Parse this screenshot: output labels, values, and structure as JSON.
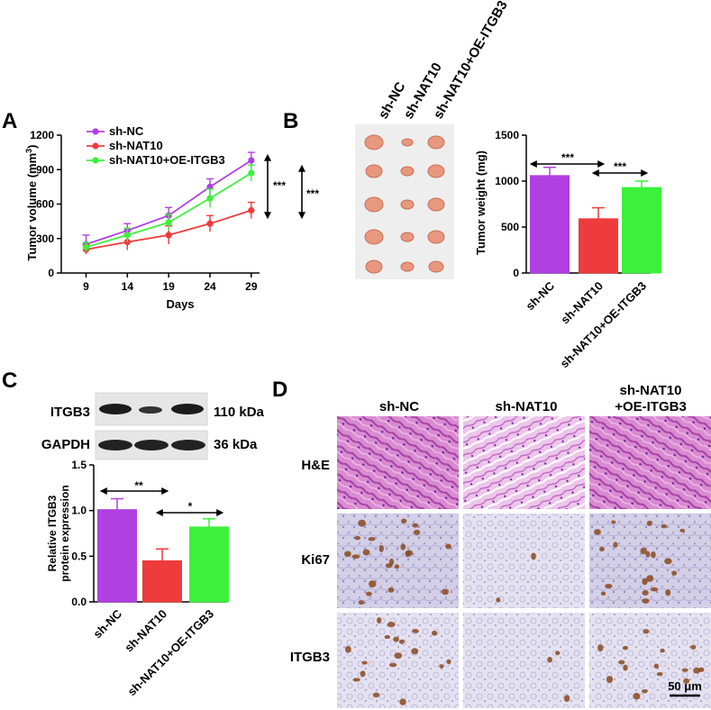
{
  "panel_labels": [
    "A",
    "B",
    "C",
    "D"
  ],
  "colors": {
    "sh-NC": "#B040E0",
    "sh-NAT10": "#EE3B3B",
    "sh-NAT10+OE-ITGB3": "#3CF03C"
  },
  "panelA": {
    "ylabel": "Tumor volume (mm",
    "ylabel_sup": "3",
    "ylabel_end": ")",
    "xlabel": "Days",
    "significance": [
      "***",
      "***"
    ]
  },
  "panelB": {
    "photo_labels": [
      "sh-NC",
      "sh-NAT10",
      "sh-NAT10+OE-ITGB3"
    ],
    "ylabel": "Tumor weight (mg)",
    "significance": [
      "***",
      "***"
    ]
  },
  "panelC": {
    "blot_labels": [
      "ITGB3",
      "GAPDH"
    ],
    "blot_sizes": [
      "110 kDa",
      "36 kDa"
    ],
    "ylabel_line1": "Relative ITGB3",
    "ylabel_line2": "protein expression",
    "significance": [
      "**",
      "*"
    ]
  },
  "panelD": {
    "column_labels": [
      "sh-NC",
      "sh-NAT10",
      "sh-NAT10",
      "+OE-ITGB3"
    ],
    "row_labels": [
      "H&E",
      "Ki67",
      "ITGB3"
    ],
    "scale_bar": "50 μm"
  },
  "chart_data": [
    {
      "type": "line",
      "x": [
        9,
        14,
        19,
        24,
        29
      ],
      "xticks": [
        "9",
        "14",
        "19",
        "24",
        "29"
      ],
      "ylim": [
        0,
        1200
      ],
      "yticks": [
        "0",
        "300",
        "600",
        "900",
        "1200"
      ],
      "legend_position": "top-left",
      "series": [
        {
          "name": "sh-NC",
          "values": [
            250,
            370,
            500,
            750,
            980
          ],
          "errors": [
            80,
            60,
            70,
            70,
            70
          ]
        },
        {
          "name": "sh-NAT10",
          "values": [
            205,
            270,
            330,
            430,
            545
          ],
          "errors": [
            40,
            70,
            80,
            70,
            70
          ]
        },
        {
          "name": "sh-NAT10+OE-ITGB3",
          "values": [
            225,
            330,
            440,
            650,
            870
          ],
          "errors": [
            40,
            60,
            70,
            80,
            70
          ]
        }
      ]
    },
    {
      "type": "bar",
      "categories": [
        "sh-NC",
        "sh-NAT10",
        "sh-NAT10+OE-ITGB3"
      ],
      "values": [
        1060,
        590,
        930
      ],
      "errors": [
        90,
        120,
        70
      ],
      "ylim": [
        0,
        1500
      ],
      "yticks": [
        "0",
        "500",
        "1000",
        "1500"
      ]
    },
    {
      "type": "bar",
      "categories": [
        "sh-NC",
        "sh-NAT10",
        "sh-NAT10+OE-ITGB3"
      ],
      "values": [
        1.01,
        0.45,
        0.82
      ],
      "errors": [
        0.12,
        0.13,
        0.09
      ],
      "ylim": [
        0,
        1.5
      ],
      "yticks": [
        "0.0",
        "0.5",
        "1.0",
        "1.5"
      ]
    }
  ]
}
